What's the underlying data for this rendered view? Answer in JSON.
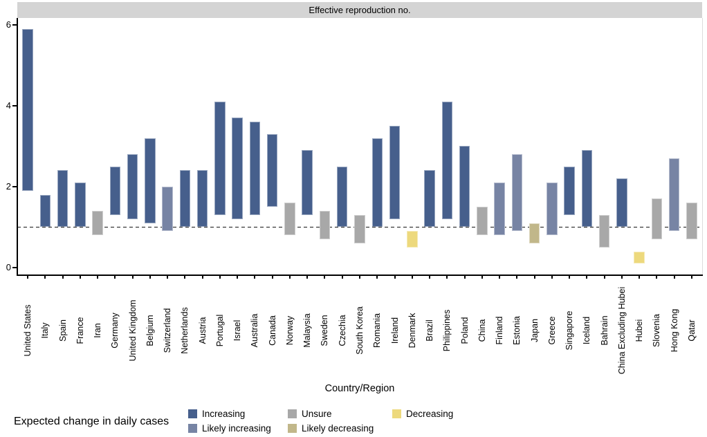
{
  "strip_title": "Effective reproduction no.",
  "axis": {
    "x_label": "Country/Region",
    "y_ticks": [
      0,
      2,
      4,
      6
    ]
  },
  "legend": {
    "title": "Expected change in daily cases",
    "items": [
      {
        "label": "Increasing",
        "color": "#465f8c"
      },
      {
        "label": "Likely increasing",
        "color": "#7784a4"
      },
      {
        "label": "Unsure",
        "color": "#a8a8a8"
      },
      {
        "label": "Likely decreasing",
        "color": "#c1b78a"
      },
      {
        "label": "Decreasing",
        "color": "#edd97d"
      }
    ]
  },
  "chart_data": {
    "type": "bar",
    "subtype": "floating range bars (credible intervals)",
    "title": "Effective reproduction no.",
    "xlabel": "Country/Region",
    "ylabel": "",
    "ylim": [
      0,
      6.2
    ],
    "yticks": [
      0,
      2,
      4,
      6
    ],
    "reference_line_y": 1,
    "grid": false,
    "legend_position": "bottom",
    "legend_title": "Expected change in daily cases",
    "colors": {
      "Increasing": "#465f8c",
      "Likely increasing": "#7784a4",
      "Unsure": "#a8a8a8",
      "Likely decreasing": "#c1b78a",
      "Decreasing": "#edd97d"
    },
    "categories": [
      "United States",
      "Italy",
      "Spain",
      "France",
      "Iran",
      "Germany",
      "United Kingdom",
      "Belgium",
      "Switzerland",
      "Netherlands",
      "Austria",
      "Portugal",
      "Israel",
      "Australia",
      "Canada",
      "Norway",
      "Malaysia",
      "Sweden",
      "Czechia",
      "South Korea",
      "Romania",
      "Ireland",
      "Denmark",
      "Brazil",
      "Philippines",
      "Poland",
      "China",
      "Finland",
      "Estonia",
      "Japan",
      "Greece",
      "Singapore",
      "Iceland",
      "Bahrain",
      "China Excluding Hubei",
      "Hubei",
      "Slovenia",
      "Hong Kong",
      "Qatar"
    ],
    "bars": [
      {
        "country": "United States",
        "low": 1.9,
        "high": 5.9,
        "trend": "Increasing"
      },
      {
        "country": "Italy",
        "low": 1.0,
        "high": 1.8,
        "trend": "Increasing"
      },
      {
        "country": "Spain",
        "low": 1.0,
        "high": 2.4,
        "trend": "Increasing"
      },
      {
        "country": "France",
        "low": 1.0,
        "high": 2.1,
        "trend": "Increasing"
      },
      {
        "country": "Iran",
        "low": 0.8,
        "high": 1.4,
        "trend": "Unsure"
      },
      {
        "country": "Germany",
        "low": 1.3,
        "high": 2.5,
        "trend": "Increasing"
      },
      {
        "country": "United Kingdom",
        "low": 1.2,
        "high": 2.8,
        "trend": "Increasing"
      },
      {
        "country": "Belgium",
        "low": 1.1,
        "high": 3.2,
        "trend": "Increasing"
      },
      {
        "country": "Switzerland",
        "low": 0.9,
        "high": 2.0,
        "trend": "Likely increasing"
      },
      {
        "country": "Netherlands",
        "low": 1.0,
        "high": 2.4,
        "trend": "Increasing"
      },
      {
        "country": "Austria",
        "low": 1.0,
        "high": 2.4,
        "trend": "Increasing"
      },
      {
        "country": "Portugal",
        "low": 1.3,
        "high": 4.1,
        "trend": "Increasing"
      },
      {
        "country": "Israel",
        "low": 1.2,
        "high": 3.7,
        "trend": "Increasing"
      },
      {
        "country": "Australia",
        "low": 1.3,
        "high": 3.6,
        "trend": "Increasing"
      },
      {
        "country": "Canada",
        "low": 1.5,
        "high": 3.3,
        "trend": "Increasing"
      },
      {
        "country": "Norway",
        "low": 0.8,
        "high": 1.6,
        "trend": "Unsure"
      },
      {
        "country": "Malaysia",
        "low": 1.3,
        "high": 2.9,
        "trend": "Increasing"
      },
      {
        "country": "Sweden",
        "low": 0.7,
        "high": 1.4,
        "trend": "Unsure"
      },
      {
        "country": "Czechia",
        "low": 1.0,
        "high": 2.5,
        "trend": "Increasing"
      },
      {
        "country": "South Korea",
        "low": 0.6,
        "high": 1.3,
        "trend": "Unsure"
      },
      {
        "country": "Romania",
        "low": 1.0,
        "high": 3.2,
        "trend": "Increasing"
      },
      {
        "country": "Ireland",
        "low": 1.2,
        "high": 3.5,
        "trend": "Increasing"
      },
      {
        "country": "Denmark",
        "low": 0.5,
        "high": 0.9,
        "trend": "Decreasing"
      },
      {
        "country": "Brazil",
        "low": 1.0,
        "high": 2.4,
        "trend": "Increasing"
      },
      {
        "country": "Philippines",
        "low": 1.2,
        "high": 4.1,
        "trend": "Increasing"
      },
      {
        "country": "Poland",
        "low": 1.0,
        "high": 3.0,
        "trend": "Increasing"
      },
      {
        "country": "China",
        "low": 0.8,
        "high": 1.5,
        "trend": "Unsure"
      },
      {
        "country": "Finland",
        "low": 0.8,
        "high": 2.1,
        "trend": "Likely increasing"
      },
      {
        "country": "Estonia",
        "low": 0.9,
        "high": 2.8,
        "trend": "Likely increasing"
      },
      {
        "country": "Japan",
        "low": 0.6,
        "high": 1.1,
        "trend": "Likely decreasing"
      },
      {
        "country": "Greece",
        "low": 0.8,
        "high": 2.1,
        "trend": "Likely increasing"
      },
      {
        "country": "Singapore",
        "low": 1.3,
        "high": 2.5,
        "trend": "Increasing"
      },
      {
        "country": "Iceland",
        "low": 1.0,
        "high": 2.9,
        "trend": "Increasing"
      },
      {
        "country": "Bahrain",
        "low": 0.5,
        "high": 1.3,
        "trend": "Unsure"
      },
      {
        "country": "China Excluding Hubei",
        "low": 1.0,
        "high": 2.2,
        "trend": "Increasing"
      },
      {
        "country": "Hubei",
        "low": 0.1,
        "high": 0.4,
        "trend": "Decreasing"
      },
      {
        "country": "Slovenia",
        "low": 0.7,
        "high": 1.7,
        "trend": "Unsure"
      },
      {
        "country": "Hong Kong",
        "low": 0.9,
        "high": 2.7,
        "trend": "Likely increasing"
      },
      {
        "country": "Qatar",
        "low": 0.7,
        "high": 1.6,
        "trend": "Unsure"
      }
    ]
  }
}
